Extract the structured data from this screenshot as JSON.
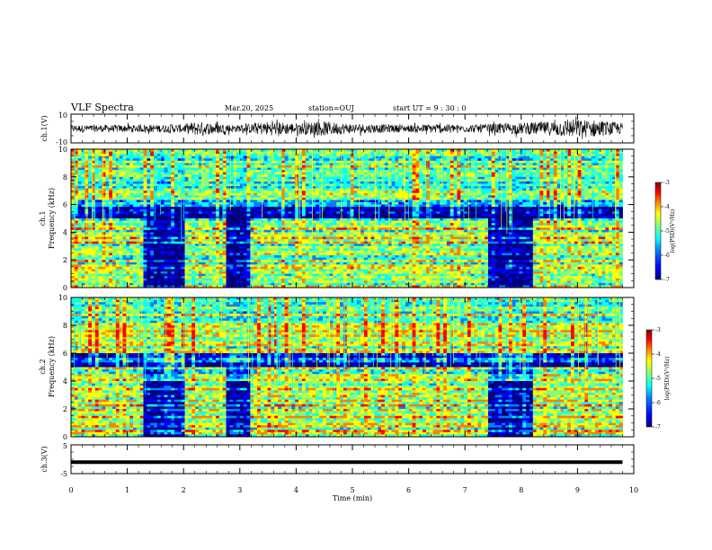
{
  "header": {
    "title": "VLF Spectra",
    "date": "Mar.20, 2025",
    "station": "station=OUJ",
    "start": "start UT =  9 : 30 : 0"
  },
  "colors": {
    "spectrogram_scale": [
      "#00007f",
      "#0000ff",
      "#0080ff",
      "#00ffff",
      "#80ff80",
      "#ffff00",
      "#ff8000",
      "#ff0000",
      "#7f0000"
    ],
    "waveform": "#000000",
    "axes": "#000000"
  },
  "chart_data": [
    {
      "type": "line",
      "panel": "ch1-waveform",
      "ylabel": "ch.1(V)",
      "ylim": [
        -10,
        10
      ],
      "yticks": [
        "10",
        "-10"
      ],
      "x_range_min": [
        0,
        9.8
      ],
      "note_values": "waveform amplitude bursts; envelope in volts",
      "envelope_x": [
        0,
        1,
        2,
        2.2,
        3,
        3.5,
        4,
        4.5,
        5,
        5.5,
        6,
        6.5,
        7,
        7.5,
        8,
        8.5,
        8.9,
        9.3,
        9.8
      ],
      "envelope_y": [
        2.5,
        2.5,
        3,
        5,
        2.5,
        5,
        4,
        5,
        3.5,
        3,
        2.5,
        3.5,
        2.5,
        3.5,
        4,
        5,
        6.5,
        6,
        4
      ]
    },
    {
      "type": "heatmap",
      "panel": "ch1-spectrogram",
      "ylabel": "ch.1 Frequency (kHz)",
      "ylim": [
        0,
        10
      ],
      "yticks": [
        "0",
        "2",
        "4",
        "6",
        "8",
        "10"
      ],
      "xlim": [
        0,
        10
      ],
      "colorbar": {
        "label": "log(PSD)(V²/Hz)",
        "range": [
          -7,
          -3
        ],
        "ticks": [
          "-3",
          "-4",
          "-5",
          "-6",
          "-7"
        ]
      },
      "quiet_intervals_min": [
        [
          1.3,
          2.0
        ],
        [
          2.75,
          3.2
        ],
        [
          7.4,
          8.2
        ]
      ]
    },
    {
      "type": "heatmap",
      "panel": "ch2-spectrogram",
      "ylabel": "ch.2 Frequency (kHz)",
      "ylim": [
        0,
        10
      ],
      "yticks": [
        "0",
        "2",
        "4",
        "6",
        "8",
        "10"
      ],
      "xlim": [
        0,
        10
      ],
      "colorbar": {
        "label": "log(PSD)(V²/Hz)",
        "range": [
          -7,
          -3
        ],
        "ticks": [
          "-3",
          "-4",
          "-5",
          "-6",
          "-7"
        ]
      },
      "quiet_intervals_min": [
        [
          1.3,
          2.0
        ],
        [
          2.75,
          3.2
        ],
        [
          7.4,
          8.2
        ]
      ]
    },
    {
      "type": "line",
      "panel": "ch3-signal",
      "ylabel": "ch.3(V)",
      "ylim": [
        -5,
        5
      ],
      "yticks": [
        "5",
        "-5"
      ],
      "x": [
        0,
        9.8
      ],
      "y": [
        -1,
        -1
      ]
    }
  ],
  "xaxis": {
    "label": "Time (min)",
    "ticks": [
      "0",
      "1",
      "2",
      "3",
      "4",
      "5",
      "6",
      "7",
      "8",
      "9",
      "10"
    ],
    "range": [
      0,
      10
    ]
  }
}
